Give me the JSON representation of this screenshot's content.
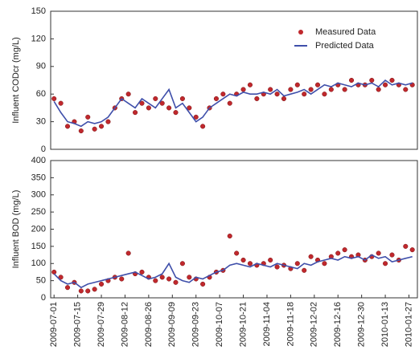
{
  "chart_data": [
    {
      "type": "line",
      "ylabel": "Influent CODcr (mg/L)",
      "x": [
        "2009-07-01",
        "2009-07-05",
        "2009-07-09",
        "2009-07-13",
        "2009-07-17",
        "2009-07-21",
        "2009-07-25",
        "2009-07-29",
        "2009-08-02",
        "2009-08-06",
        "2009-08-10",
        "2009-08-14",
        "2009-08-18",
        "2009-08-22",
        "2009-08-26",
        "2009-08-30",
        "2009-09-03",
        "2009-09-07",
        "2009-09-11",
        "2009-09-15",
        "2009-09-19",
        "2009-09-23",
        "2009-09-27",
        "2009-10-01",
        "2009-10-05",
        "2009-10-09",
        "2009-10-13",
        "2009-10-17",
        "2009-10-21",
        "2009-10-25",
        "2009-10-29",
        "2009-11-02",
        "2009-11-06",
        "2009-11-10",
        "2009-11-14",
        "2009-11-18",
        "2009-11-22",
        "2009-11-26",
        "2009-11-30",
        "2009-12-04",
        "2009-12-08",
        "2009-12-12",
        "2009-12-16",
        "2009-12-20",
        "2009-12-24",
        "2009-12-28",
        "2010-01-01",
        "2010-01-05",
        "2010-01-09",
        "2010-01-13",
        "2010-01-17",
        "2010-01-21",
        "2010-01-25",
        "2010-01-29"
      ],
      "xlim": [
        "2009-06-29",
        "2010-02-01"
      ],
      "ylim": [
        0,
        150
      ],
      "yticks": [
        0,
        30,
        60,
        90,
        120,
        150
      ],
      "legend": "upper right",
      "series": [
        {
          "name": "Measured Data",
          "mode": "markers",
          "color": "#c0282d",
          "values": [
            55,
            50,
            25,
            30,
            20,
            35,
            22,
            25,
            30,
            45,
            55,
            60,
            40,
            50,
            45,
            55,
            50,
            45,
            40,
            55,
            45,
            35,
            25,
            45,
            55,
            60,
            50,
            60,
            65,
            70,
            55,
            60,
            65,
            60,
            55,
            65,
            70,
            60,
            65,
            70,
            60,
            65,
            70,
            65,
            75,
            70,
            70,
            75,
            65,
            70,
            75,
            70,
            65,
            70
          ]
        },
        {
          "name": "Predicted Data",
          "mode": "line",
          "color": "#3f4faa",
          "values": [
            52,
            40,
            30,
            28,
            25,
            30,
            28,
            30,
            35,
            45,
            55,
            50,
            45,
            55,
            50,
            45,
            55,
            65,
            45,
            50,
            40,
            30,
            35,
            45,
            50,
            55,
            60,
            58,
            62,
            60,
            60,
            62,
            60,
            65,
            58,
            60,
            62,
            65,
            60,
            65,
            70,
            68,
            72,
            70,
            68,
            72,
            70,
            72,
            68,
            75,
            70,
            72,
            70,
            72
          ]
        }
      ]
    },
    {
      "type": "line",
      "ylabel": "Influent BOD (mg/L)",
      "x": [
        "2009-07-01",
        "2009-07-05",
        "2009-07-09",
        "2009-07-13",
        "2009-07-17",
        "2009-07-21",
        "2009-07-25",
        "2009-07-29",
        "2009-08-02",
        "2009-08-06",
        "2009-08-10",
        "2009-08-14",
        "2009-08-18",
        "2009-08-22",
        "2009-08-26",
        "2009-08-30",
        "2009-09-03",
        "2009-09-07",
        "2009-09-11",
        "2009-09-15",
        "2009-09-19",
        "2009-09-23",
        "2009-09-27",
        "2009-10-01",
        "2009-10-05",
        "2009-10-09",
        "2009-10-13",
        "2009-10-17",
        "2009-10-21",
        "2009-10-25",
        "2009-10-29",
        "2009-11-02",
        "2009-11-06",
        "2009-11-10",
        "2009-11-14",
        "2009-11-18",
        "2009-11-22",
        "2009-11-26",
        "2009-11-30",
        "2009-12-04",
        "2009-12-08",
        "2009-12-12",
        "2009-12-16",
        "2009-12-20",
        "2009-12-24",
        "2009-12-28",
        "2010-01-01",
        "2010-01-05",
        "2010-01-09",
        "2010-01-13",
        "2010-01-17",
        "2010-01-21",
        "2010-01-25",
        "2010-01-29"
      ],
      "xlim": [
        "2009-06-29",
        "2010-02-01"
      ],
      "xticks": [
        "2009-07-01",
        "2009-07-15",
        "2009-07-29",
        "2009-08-12",
        "2009-08-26",
        "2009-09-09",
        "2009-09-23",
        "2009-10-07",
        "2009-10-21",
        "2009-11-04",
        "2009-11-18",
        "2009-12-02",
        "2009-12-16",
        "2009-12-30",
        "2010-01-13",
        "2010-01-27"
      ],
      "ylim": [
        0,
        400
      ],
      "yticks": [
        0,
        50,
        100,
        150,
        200,
        250,
        300,
        350,
        400
      ],
      "series": [
        {
          "mode": "markers",
          "color": "#c0282d",
          "values": [
            75,
            60,
            30,
            45,
            20,
            20,
            25,
            40,
            50,
            60,
            55,
            130,
            70,
            75,
            60,
            50,
            60,
            55,
            45,
            100,
            60,
            55,
            40,
            60,
            75,
            80,
            180,
            130,
            110,
            100,
            95,
            100,
            110,
            90,
            95,
            85,
            100,
            80,
            120,
            110,
            100,
            120,
            130,
            140,
            120,
            125,
            110,
            120,
            130,
            100,
            125,
            110,
            150,
            140
          ]
        },
        {
          "mode": "line",
          "color": "#3f4faa",
          "values": [
            70,
            50,
            40,
            45,
            30,
            40,
            45,
            50,
            55,
            60,
            65,
            70,
            75,
            65,
            55,
            60,
            70,
            100,
            60,
            50,
            45,
            60,
            55,
            65,
            75,
            80,
            95,
            100,
            95,
            90,
            100,
            95,
            90,
            100,
            95,
            90,
            85,
            100,
            95,
            105,
            110,
            115,
            110,
            120,
            115,
            120,
            110,
            125,
            115,
            120,
            105,
            110,
            115,
            120
          ]
        }
      ]
    }
  ]
}
